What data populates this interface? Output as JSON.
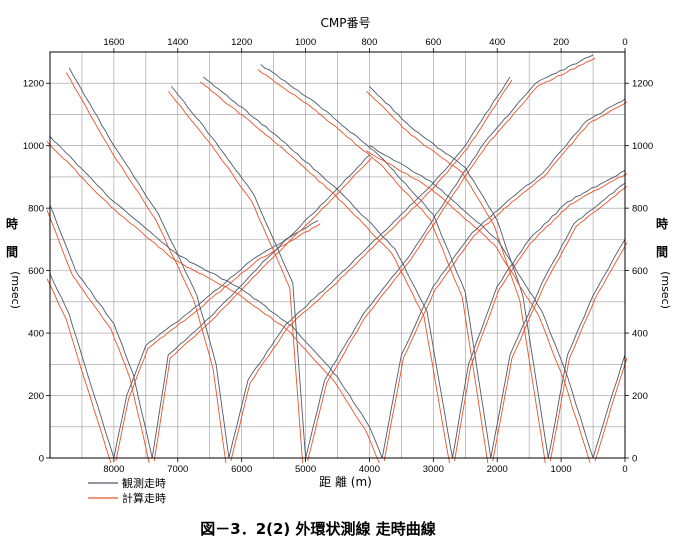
{
  "caption": "図－3．2(2)  外環状測線 走時曲線",
  "chart_data": {
    "type": "line",
    "top_axis": {
      "title": "CMP番号",
      "ticks": [
        1600,
        1400,
        1200,
        1000,
        800,
        600,
        400,
        200,
        0
      ],
      "range": [
        1800,
        0
      ]
    },
    "x_axis": {
      "title": "距 離 (m)",
      "ticks": [
        8000,
        7000,
        6000,
        5000,
        4000,
        3000,
        2000,
        1000,
        0
      ],
      "range": [
        9000,
        0
      ],
      "reversed": true
    },
    "y_axis": {
      "left_title": [
        "時",
        "間",
        "(msec)"
      ],
      "right_title": [
        "時",
        "間",
        "(msec)"
      ],
      "ticks": [
        0,
        200,
        400,
        600,
        800,
        1000,
        1200
      ],
      "range": [
        0,
        1300
      ]
    },
    "grid": true,
    "legend": {
      "placement": "bottom-left",
      "entries": [
        {
          "label": "観測走時",
          "color": "#505a6a"
        },
        {
          "label": "計算走時",
          "color": "#e8542a"
        }
      ]
    },
    "shots": [
      {
        "x": 8000,
        "left": [
          [
            9000,
            590
          ],
          [
            8700,
            460
          ],
          [
            8400,
            260
          ],
          [
            8000,
            0
          ]
        ],
        "right": [
          [
            8000,
            0
          ],
          [
            7800,
            200
          ],
          [
            7500,
            360
          ],
          [
            6800,
            470
          ],
          [
            5800,
            640
          ],
          [
            4800,
            760
          ]
        ]
      },
      {
        "x": 7400,
        "left": [
          [
            9000,
            810
          ],
          [
            8600,
            600
          ],
          [
            8000,
            430
          ],
          [
            7700,
            270
          ],
          [
            7400,
            0
          ]
        ],
        "right": [
          [
            7400,
            0
          ],
          [
            7150,
            330
          ],
          [
            6500,
            450
          ],
          [
            5600,
            640
          ],
          [
            4700,
            820
          ],
          [
            4000,
            970
          ]
        ]
      },
      {
        "x": 6200,
        "left": [
          [
            8700,
            1250
          ],
          [
            8000,
            1000
          ],
          [
            7300,
            780
          ],
          [
            6700,
            520
          ],
          [
            6400,
            300
          ],
          [
            6200,
            0
          ]
        ],
        "right": [
          [
            6200,
            0
          ],
          [
            5900,
            250
          ],
          [
            5300,
            430
          ],
          [
            4600,
            560
          ],
          [
            3800,
            720
          ],
          [
            3000,
            880
          ],
          [
            2500,
            1000
          ],
          [
            1800,
            1220
          ]
        ]
      },
      {
        "x": 5000,
        "left": [
          [
            7100,
            1190
          ],
          [
            6400,
            1010
          ],
          [
            5800,
            840
          ],
          [
            5200,
            560
          ],
          [
            5000,
            0
          ]
        ],
        "right": [
          [
            5000,
            0
          ],
          [
            4700,
            250
          ],
          [
            4100,
            460
          ],
          [
            3400,
            640
          ],
          [
            2700,
            860
          ],
          [
            2200,
            1010
          ],
          [
            1400,
            1200
          ],
          [
            500,
            1290
          ]
        ]
      },
      {
        "x": 3800,
        "left": [
          [
            9000,
            1030
          ],
          [
            8000,
            820
          ],
          [
            7000,
            650
          ],
          [
            6000,
            540
          ],
          [
            5200,
            420
          ],
          [
            4500,
            260
          ],
          [
            4000,
            100
          ],
          [
            3800,
            0
          ]
        ],
        "right": [
          [
            3800,
            0
          ],
          [
            3500,
            330
          ],
          [
            3000,
            550
          ],
          [
            2400,
            720
          ],
          [
            1800,
            830
          ],
          [
            1300,
            910
          ],
          [
            600,
            1080
          ],
          [
            0,
            1150
          ]
        ]
      },
      {
        "x": 2700,
        "left": [
          [
            6600,
            1220
          ],
          [
            5500,
            1040
          ],
          [
            4500,
            860
          ],
          [
            3600,
            670
          ],
          [
            3100,
            470
          ],
          [
            2700,
            0
          ]
        ],
        "right": [
          [
            2700,
            0
          ],
          [
            2450,
            300
          ],
          [
            2000,
            550
          ],
          [
            1500,
            700
          ],
          [
            900,
            820
          ],
          [
            0,
            920
          ]
        ]
      },
      {
        "x": 2100,
        "left": [
          [
            5700,
            1260
          ],
          [
            4800,
            1130
          ],
          [
            3800,
            960
          ],
          [
            3000,
            780
          ],
          [
            2500,
            530
          ],
          [
            2100,
            0
          ]
        ],
        "right": [
          [
            2100,
            0
          ],
          [
            1800,
            330
          ],
          [
            1300,
            560
          ],
          [
            800,
            750
          ],
          [
            0,
            880
          ]
        ]
      },
      {
        "x": 1200,
        "left": [
          [
            4000,
            1190
          ],
          [
            3300,
            1050
          ],
          [
            2500,
            930
          ],
          [
            2000,
            760
          ],
          [
            1600,
            520
          ],
          [
            1200,
            0
          ]
        ],
        "right": [
          [
            1200,
            0
          ],
          [
            900,
            330
          ],
          [
            500,
            520
          ],
          [
            0,
            700
          ]
        ]
      },
      {
        "x": 500,
        "left": [
          [
            4000,
            1000
          ],
          [
            3000,
            880
          ],
          [
            2000,
            700
          ],
          [
            1300,
            470
          ],
          [
            900,
            260
          ],
          [
            500,
            0
          ]
        ],
        "right": [
          [
            500,
            0
          ],
          [
            250,
            170
          ],
          [
            0,
            330
          ]
        ]
      }
    ]
  }
}
